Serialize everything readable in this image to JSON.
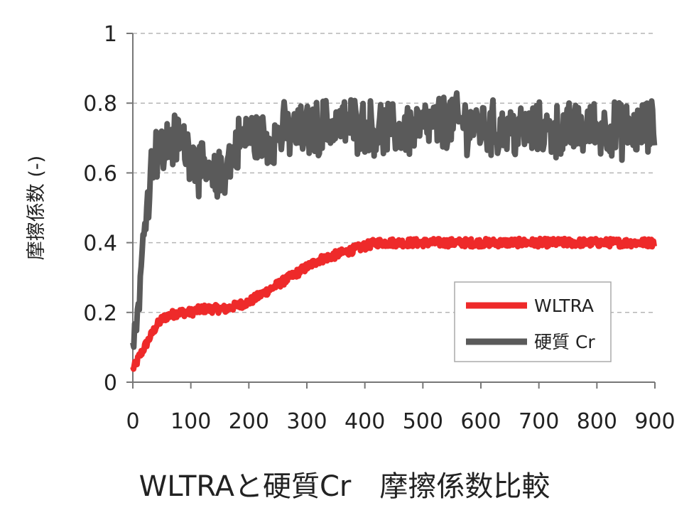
{
  "caption": "WLTRAと硬質Cr　摩擦係数比較",
  "chart_data": {
    "type": "line",
    "title": "",
    "xlabel": "",
    "ylabel": "摩擦係数 (-)",
    "xlim": [
      0,
      900
    ],
    "ylim": [
      0,
      1
    ],
    "x_ticks": [
      0,
      100,
      200,
      300,
      400,
      500,
      600,
      700,
      800,
      900
    ],
    "y_ticks": [
      0,
      0.2,
      0.4,
      0.6,
      0.8,
      1
    ],
    "y_tick_labels": [
      "0",
      "0.2",
      "0.4",
      "0.6",
      "0.8",
      "1"
    ],
    "grid": "horizontal dashed",
    "legend_position": "bottom-right",
    "x": [
      0,
      5,
      10,
      20,
      30,
      40,
      50,
      60,
      80,
      100,
      120,
      140,
      160,
      180,
      200,
      220,
      240,
      260,
      280,
      300,
      320,
      340,
      360,
      380,
      400,
      420,
      450,
      500,
      550,
      600,
      650,
      700,
      750,
      800,
      850,
      900
    ],
    "series": [
      {
        "name": "WLTRA",
        "color": "#ee2a2a",
        "values": [
          0.04,
          0.05,
          0.07,
          0.1,
          0.13,
          0.16,
          0.18,
          0.19,
          0.2,
          0.2,
          0.21,
          0.21,
          0.21,
          0.22,
          0.23,
          0.25,
          0.27,
          0.29,
          0.31,
          0.33,
          0.35,
          0.36,
          0.37,
          0.38,
          0.39,
          0.4,
          0.4,
          0.4,
          0.4,
          0.4,
          0.4,
          0.4,
          0.4,
          0.4,
          0.4,
          0.4
        ]
      },
      {
        "name": "硬質 Cr",
        "color": "#5a5a5a",
        "values": [
          0.1,
          0.17,
          0.22,
          0.45,
          0.6,
          0.67,
          0.66,
          0.68,
          0.7,
          0.66,
          0.6,
          0.57,
          0.62,
          0.68,
          0.71,
          0.7,
          0.7,
          0.72,
          0.71,
          0.72,
          0.73,
          0.74,
          0.74,
          0.74,
          0.73,
          0.73,
          0.72,
          0.73,
          0.75,
          0.73,
          0.72,
          0.72,
          0.72,
          0.73,
          0.72,
          0.73
        ]
      }
    ]
  }
}
